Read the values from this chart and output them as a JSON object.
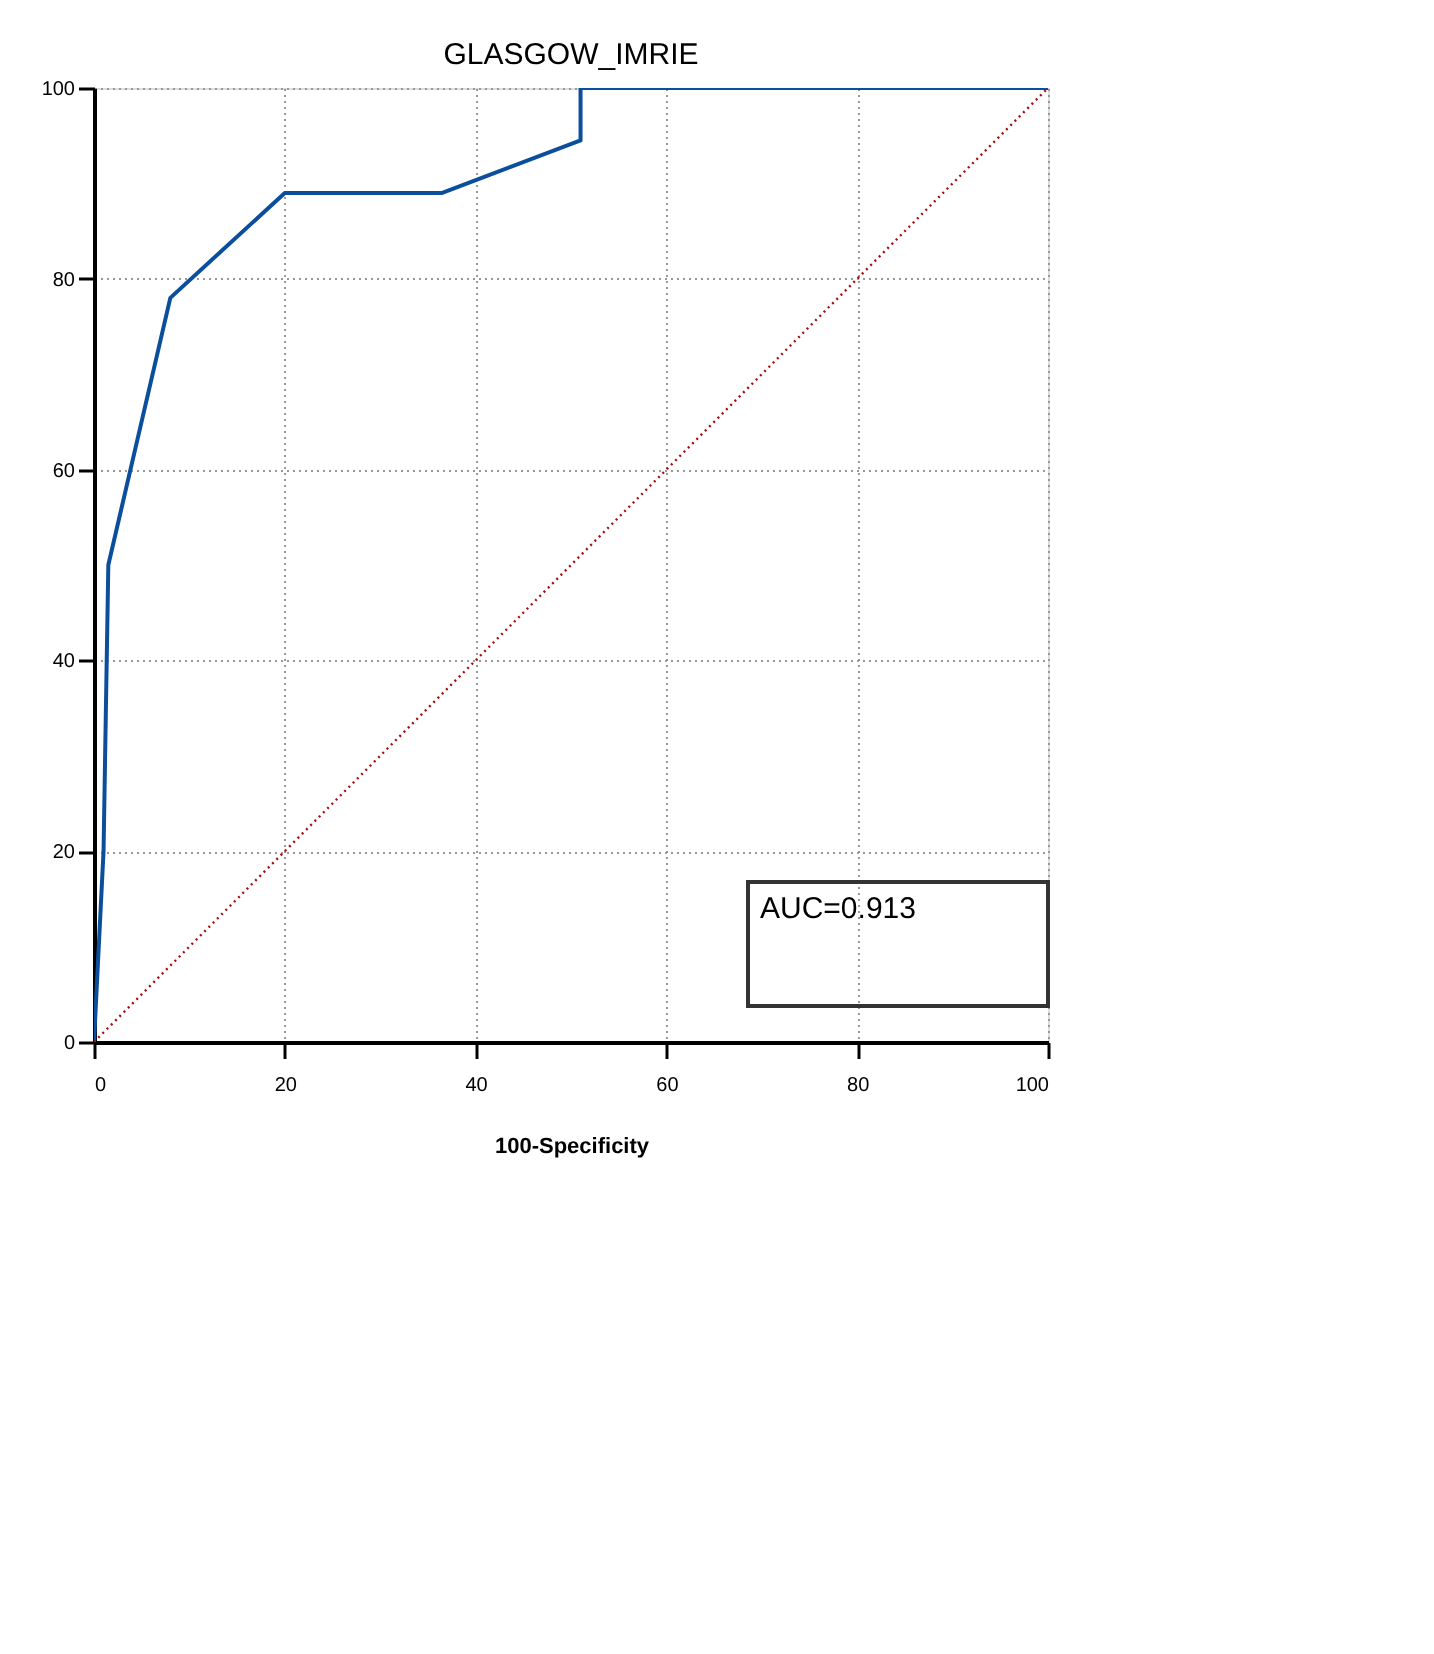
{
  "chart_data": {
    "type": "line",
    "title": "GLASGOW_IMRIE",
    "xlabel": "100-Specificity",
    "xlim": [
      0,
      100
    ],
    "ylim": [
      0,
      100
    ],
    "xticks": [
      0,
      20,
      40,
      60,
      80,
      100
    ],
    "yticks": [
      0,
      20,
      40,
      60,
      80,
      100
    ],
    "grid": true,
    "marker": "none",
    "series": [
      {
        "color": "#0b4f9c",
        "line_style": "solid",
        "x": [
          0,
          1,
          1.5,
          8,
          20,
          36.5,
          51,
          51,
          100
        ],
        "values": [
          0,
          20,
          50,
          78,
          89,
          89,
          94.5,
          100,
          100
        ]
      },
      {
        "color": "#a01010",
        "line_style": "dotted",
        "x": [
          0,
          100
        ],
        "values": [
          0,
          100
        ]
      }
    ],
    "annotations": [
      "AUC=0.913"
    ]
  }
}
